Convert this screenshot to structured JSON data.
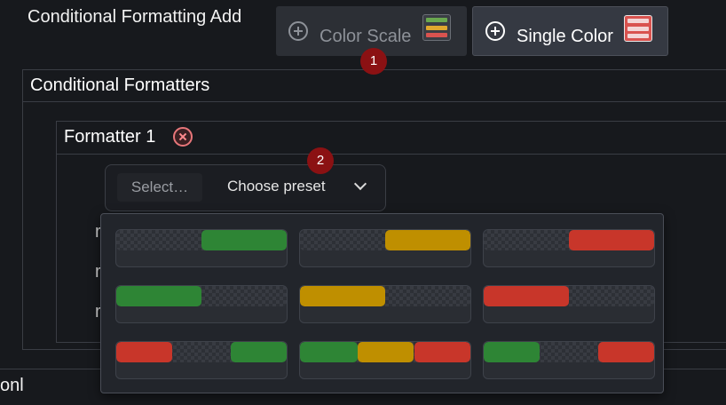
{
  "header": {
    "title": "Conditional Formatting Add",
    "buttons": [
      {
        "label": "Color Scale",
        "state": "disabled",
        "icon": "color-scale-icon"
      },
      {
        "label": "Single Color",
        "state": "enabled",
        "icon": "single-color-icon"
      }
    ]
  },
  "annotations": {
    "badge1": "1",
    "badge2": "2"
  },
  "formatters": {
    "title": "Conditional Formatters",
    "formatter": {
      "title": "Formatter 1",
      "remove_icon": "remove-circle-icon",
      "select_placeholder": "Select…",
      "select_value": "Choose preset",
      "row_labels": [
        "r",
        "r",
        "r"
      ]
    }
  },
  "presets": [
    {
      "name": "green-right",
      "segments": [
        {
          "color": "#2e8535",
          "start": 0.5,
          "end": 1.0
        }
      ]
    },
    {
      "name": "yellow-right",
      "segments": [
        {
          "color": "#bf8f00",
          "start": 0.5,
          "end": 1.0
        }
      ]
    },
    {
      "name": "red-right",
      "segments": [
        {
          "color": "#c8362a",
          "start": 0.5,
          "end": 1.0
        }
      ]
    },
    {
      "name": "green-left",
      "segments": [
        {
          "color": "#2e8535",
          "start": 0.0,
          "end": 0.5
        }
      ]
    },
    {
      "name": "yellow-left",
      "segments": [
        {
          "color": "#bf8f00",
          "start": 0.0,
          "end": 0.5
        }
      ]
    },
    {
      "name": "red-left",
      "segments": [
        {
          "color": "#c8362a",
          "start": 0.0,
          "end": 0.5
        }
      ]
    },
    {
      "name": "red-green",
      "segments": [
        {
          "color": "#c8362a",
          "start": 0.0,
          "end": 0.33
        },
        {
          "color": "#2e8535",
          "start": 0.67,
          "end": 1.0
        }
      ]
    },
    {
      "name": "green-yellow-red",
      "segments": [
        {
          "color": "#2e8535",
          "start": 0.0,
          "end": 0.34
        },
        {
          "color": "#bf8f00",
          "start": 0.34,
          "end": 0.67
        },
        {
          "color": "#c8362a",
          "start": 0.67,
          "end": 1.0
        }
      ]
    },
    {
      "name": "green-red",
      "segments": [
        {
          "color": "#2e8535",
          "start": 0.0,
          "end": 0.33
        },
        {
          "color": "#c8362a",
          "start": 0.67,
          "end": 1.0
        }
      ]
    }
  ],
  "footer": {
    "label": "onl"
  },
  "colors": {
    "background": "#17191d",
    "badge": "#8b1113",
    "green": "#2e8535",
    "yellow": "#bf8f00",
    "red": "#c8362a"
  }
}
